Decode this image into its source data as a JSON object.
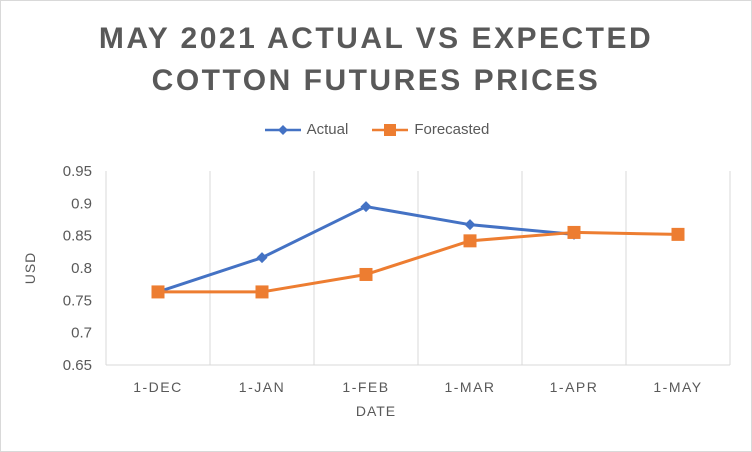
{
  "chart_data": {
    "type": "line",
    "title_line1": "MAY 2021 ACTUAL VS EXPECTED",
    "title_line2": "COTTON FUTURES PRICES",
    "xlabel": "DATE",
    "ylabel": "USD",
    "categories": [
      "1-DEC",
      "1-JAN",
      "1-FEB",
      "1-MAR",
      "1-APR",
      "1-MAY"
    ],
    "ylim": [
      0.65,
      0.95
    ],
    "yticks": [
      "0.65",
      "0.7",
      "0.75",
      "0.8",
      "0.85",
      "0.9",
      "0.95"
    ],
    "grid": "vertical",
    "legend_position": "top",
    "series": [
      {
        "name": "Actual",
        "color": "#4472c4",
        "marker": "diamond",
        "values": [
          0.763,
          0.816,
          0.895,
          0.867,
          0.852,
          null
        ]
      },
      {
        "name": "Forecasted",
        "color": "#ed7d31",
        "marker": "square",
        "values": [
          0.763,
          0.763,
          0.79,
          0.842,
          0.855,
          0.852
        ]
      }
    ]
  }
}
